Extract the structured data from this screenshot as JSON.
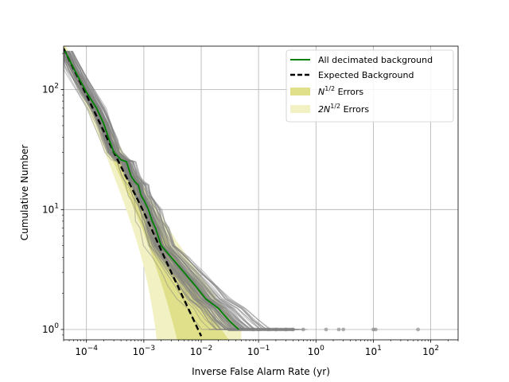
{
  "chart_data": {
    "type": "line",
    "xlabel": "Inverse False Alarm Rate (yr)",
    "ylabel": "Cumulative Number",
    "xscale": "log",
    "yscale": "log",
    "xlim": [
      4e-05,
      300
    ],
    "ylim": [
      0.82,
      230
    ],
    "grid": true,
    "legend_position": "top-right",
    "x_ticks": [
      {
        "value": 0.0001,
        "base": "10",
        "exp": "−4"
      },
      {
        "value": 0.001,
        "base": "10",
        "exp": "−3"
      },
      {
        "value": 0.01,
        "base": "10",
        "exp": "−2"
      },
      {
        "value": 0.1,
        "base": "10",
        "exp": "−1"
      },
      {
        "value": 1,
        "base": "10",
        "exp": "0"
      },
      {
        "value": 10,
        "base": "10",
        "exp": "1"
      },
      {
        "value": 100,
        "base": "10",
        "exp": "2"
      }
    ],
    "y_ticks": [
      {
        "value": 1,
        "base": "10",
        "exp": "0"
      },
      {
        "value": 10,
        "base": "10",
        "exp": "1"
      },
      {
        "value": 100,
        "base": "10",
        "exp": "2"
      }
    ],
    "legend": {
      "all_bg": "All decimated background",
      "expected": "Expected Background",
      "n_err_pre": "N",
      "n_err_sup": "1/2",
      "n_err_post": " Errors",
      "two_n_err_pre": "2N",
      "two_n_err_sup": "1/2",
      "two_n_err_post": " Errors"
    },
    "colors": {
      "all_bg": "#008000",
      "expected": "#000000",
      "n_err": "#e0e08a",
      "two_n_err": "#f1f1c4",
      "background_trials": "#808080"
    },
    "expected_background": {
      "x": [
        4e-05,
        0.0001,
        0.0003,
        0.001,
        0.003,
        0.01
      ],
      "y": [
        220,
        90,
        30,
        9.5,
        3.0,
        0.88
      ]
    },
    "all_decimated_background": {
      "x": [
        4.2e-05,
        6e-05,
        0.0001,
        0.00015,
        0.0002,
        0.00025,
        0.0003,
        0.0004,
        0.0005,
        0.0006,
        0.0007,
        0.0008,
        0.0009,
        0.001,
        0.0012,
        0.0014,
        0.0016,
        0.002,
        0.003,
        0.005,
        0.008,
        0.012,
        0.02,
        0.03,
        0.045
      ],
      "y": [
        210,
        150,
        95,
        70,
        52,
        38,
        30,
        26,
        25,
        19,
        17,
        16,
        13,
        12,
        10,
        8,
        7,
        5.0,
        4.0,
        3.0,
        2.3,
        1.8,
        1.5,
        1.2,
        1.0
      ]
    },
    "background_trial_tail_points": {
      "x": [
        0.08,
        0.1,
        0.15,
        0.2,
        0.3,
        0.4,
        0.6,
        1.5,
        2.5,
        3.0,
        10,
        11,
        60
      ],
      "y": [
        1,
        1,
        1,
        1,
        1,
        1,
        1,
        1,
        1,
        1,
        1,
        1,
        1
      ]
    },
    "n_background_trials": 80
  }
}
